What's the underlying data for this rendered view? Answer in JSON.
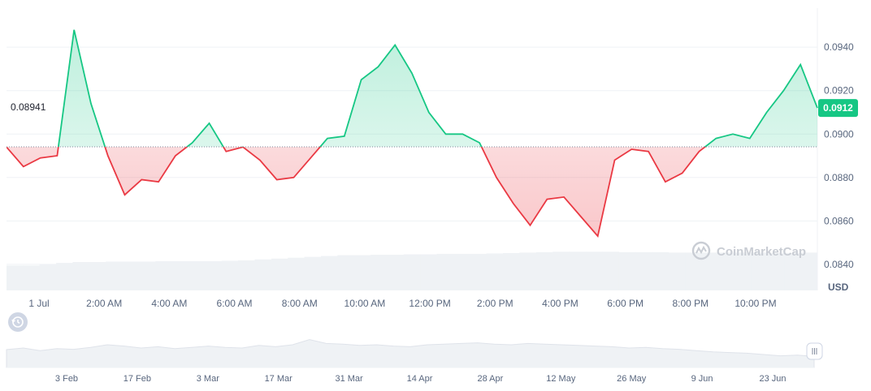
{
  "chart_data": {
    "type": "area",
    "x": [
      "1 Jul 00:00",
      "00:30",
      "01:00",
      "01:30",
      "02:00",
      "02:30",
      "03:00",
      "03:30",
      "04:00",
      "04:30",
      "05:00",
      "05:30",
      "06:00",
      "06:30",
      "07:00",
      "07:30",
      "08:00",
      "08:30",
      "09:00",
      "09:30",
      "10:00",
      "10:30",
      "11:00",
      "11:30",
      "12:00",
      "12:30",
      "13:00",
      "13:30",
      "14:00",
      "14:30",
      "15:00",
      "15:30",
      "16:00",
      "16:30",
      "17:00",
      "17:30",
      "18:00",
      "18:30",
      "19:00",
      "19:30",
      "20:00",
      "20:30",
      "21:00",
      "21:30",
      "22:00",
      "22:30",
      "23:00",
      "23:30",
      "24:00"
    ],
    "series": [
      {
        "values": [
          0.0894,
          0.0885,
          0.0889,
          0.089,
          0.0948,
          0.0914,
          0.089,
          0.0872,
          0.0879,
          0.0878,
          0.089,
          0.0896,
          0.0905,
          0.0892,
          0.0894,
          0.0888,
          0.0879,
          0.088,
          0.0889,
          0.0898,
          0.0899,
          0.0925,
          0.0931,
          0.0941,
          0.0928,
          0.091,
          0.09,
          0.09,
          0.0896,
          0.088,
          0.0868,
          0.0858,
          0.087,
          0.0871,
          0.0862,
          0.0853,
          0.0888,
          0.0893,
          0.0892,
          0.0878,
          0.0882,
          0.0892,
          0.0898,
          0.09,
          0.0898,
          0.091,
          0.092,
          0.0932,
          0.0912
        ]
      }
    ],
    "reference_value": "0.08941",
    "current_value": "0.0912",
    "y_ticks": [
      "0.0940",
      "0.0920",
      "0.0900",
      "0.0880",
      "0.0860",
      "0.0840"
    ],
    "x_ticks": [
      "1 Jul",
      "2:00 AM",
      "4:00 AM",
      "6:00 AM",
      "8:00 AM",
      "10:00 AM",
      "12:00 PM",
      "2:00 PM",
      "4:00 PM",
      "6:00 PM",
      "8:00 PM",
      "10:00 PM"
    ],
    "ylim": [
      0.0828,
      0.0958
    ],
    "unit_label": "USD",
    "volume": [
      0.58,
      0.58,
      0.6,
      0.64,
      0.66,
      0.66,
      0.67,
      0.67,
      0.67,
      0.68,
      0.68,
      0.68,
      0.68,
      0.69,
      0.7,
      0.72,
      0.74,
      0.76,
      0.78,
      0.8,
      0.82,
      0.82,
      0.83,
      0.83,
      0.84,
      0.84,
      0.85,
      0.85,
      0.85,
      0.86,
      0.87,
      0.88,
      0.89,
      0.9,
      0.9,
      0.9,
      0.9,
      0.89,
      0.89,
      0.89,
      0.88,
      0.88,
      0.88,
      0.88,
      0.88,
      0.88,
      0.87,
      0.87,
      0.88
    ],
    "navigator": {
      "x_ticks": [
        "3 Feb",
        "17 Feb",
        "3 Mar",
        "17 Mar",
        "31 Mar",
        "14 Apr",
        "28 Apr",
        "12 May",
        "26 May",
        "9 Jun",
        "23 Jun"
      ],
      "values": [
        0.55,
        0.6,
        0.52,
        0.58,
        0.56,
        0.62,
        0.7,
        0.66,
        0.6,
        0.64,
        0.58,
        0.62,
        0.66,
        0.62,
        0.6,
        0.68,
        0.64,
        0.7,
        0.86,
        0.74,
        0.72,
        0.68,
        0.7,
        0.66,
        0.64,
        0.7,
        0.72,
        0.74,
        0.76,
        0.72,
        0.7,
        0.74,
        0.72,
        0.7,
        0.68,
        0.66,
        0.64,
        0.6,
        0.62,
        0.58,
        0.56,
        0.52,
        0.48,
        0.46,
        0.44,
        0.4,
        0.36,
        0.38,
        0.34
      ]
    },
    "grid": true,
    "colors": {
      "up": "#16c784",
      "down": "#ea3943",
      "up_fill": "#d3f5e6",
      "down_fill": "#fbd6d8",
      "volume": "#eff2f5",
      "grid": "#eff2f5"
    }
  },
  "watermark": "CoinMarketCap",
  "icons": {
    "history": "history-icon",
    "logo": "coinmarketcap-logo-icon",
    "handle": "range-handle-icon"
  }
}
